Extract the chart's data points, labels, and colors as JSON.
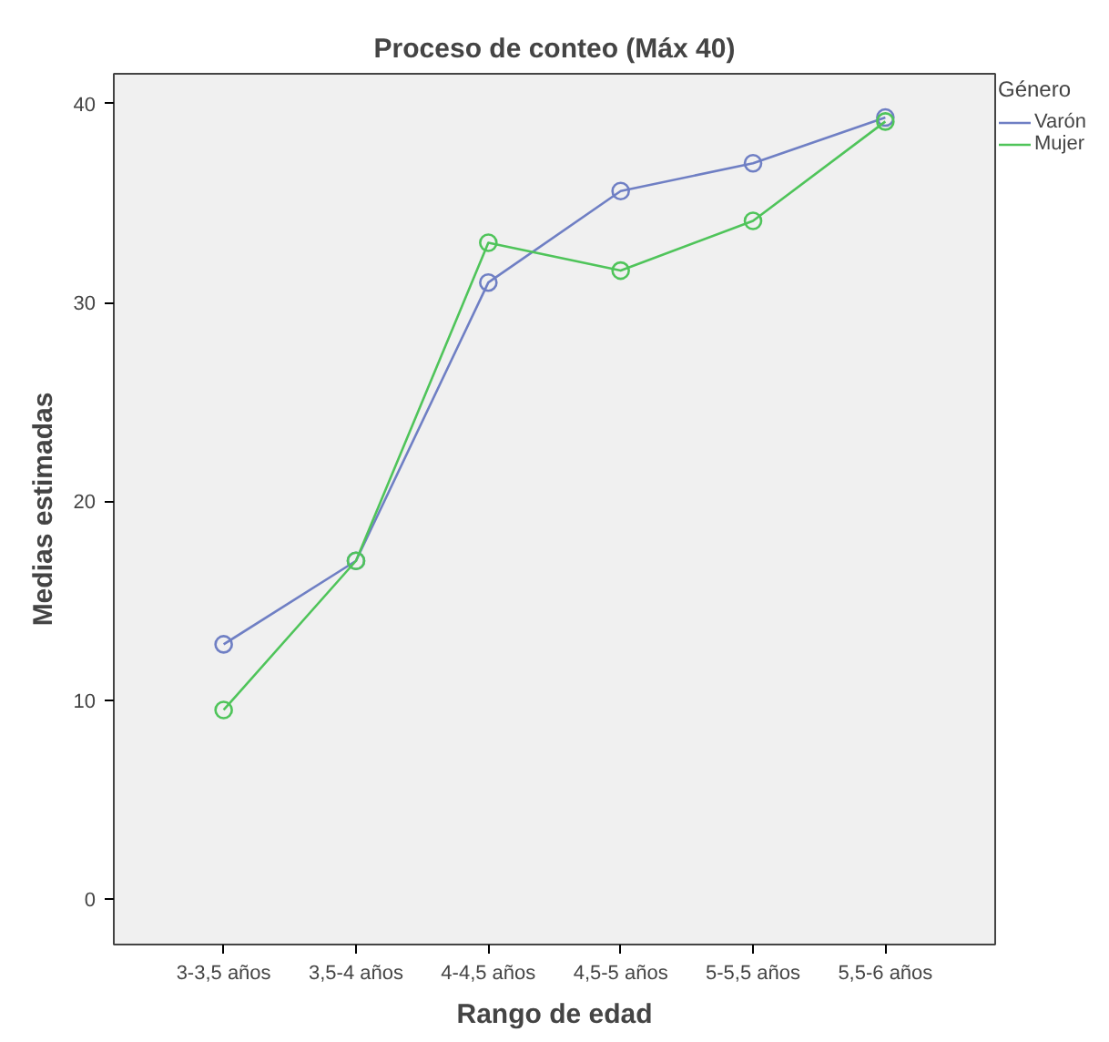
{
  "chart_data": {
    "type": "line",
    "title": "Proceso de conteo (Máx 40)",
    "xlabel": "Rango de edad",
    "ylabel": "Medias estimadas",
    "legend_title": "Género",
    "categories": [
      "3-3,5 años",
      "3,5-4 años",
      "4-4,5 años",
      "4,5-5 años",
      "5-5,5 años",
      "5,5-6 años"
    ],
    "series": [
      {
        "name": "Varón",
        "color": "#6f7fc4",
        "values": [
          12.8,
          17.0,
          31.0,
          35.6,
          37.0,
          39.3
        ]
      },
      {
        "name": "Mujer",
        "color": "#4fc45a",
        "values": [
          9.5,
          17.0,
          33.0,
          31.6,
          34.1,
          39.1
        ]
      }
    ],
    "ylim": [
      -2.3,
      41.5
    ],
    "yticks": [
      0,
      10,
      20,
      30,
      40
    ],
    "grid": false,
    "legend": "top right",
    "marker": "circle"
  }
}
